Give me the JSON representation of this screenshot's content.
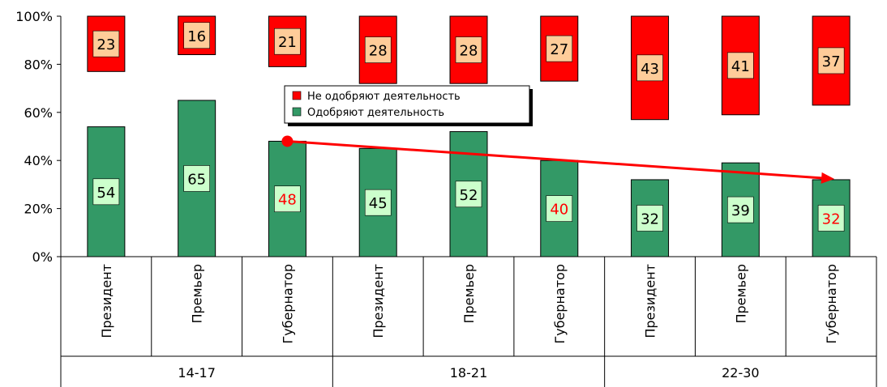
{
  "chart_data": {
    "type": "bar",
    "stacked": true,
    "y_tick_labels": [
      "0%",
      "20%",
      "40%",
      "60%",
      "80%",
      "100%"
    ],
    "ylim": [
      0,
      100
    ],
    "groups": [
      "14-17",
      "18-21",
      "22-30"
    ],
    "categories": [
      "Президент",
      "Премьер",
      "Губернатор",
      "Президент",
      "Премьер",
      "Губернатор",
      "Президент",
      "Премьер",
      "Губернатор"
    ],
    "series": [
      {
        "name": "Одобряют деятельность",
        "color": "#339966",
        "position": "bottom",
        "values": [
          54,
          65,
          48,
          45,
          52,
          40,
          32,
          39,
          32
        ]
      },
      {
        "name": "Не одобряют деятельность",
        "color": "#ff0000",
        "position": "top",
        "values": [
          23,
          16,
          21,
          28,
          28,
          27,
          43,
          41,
          37
        ]
      }
    ],
    "highlighted_labels": [
      2,
      5,
      8
    ],
    "highlight_color": "#ff0000",
    "green_label_fill": "#ccffcc",
    "red_label_fill": "#ffcc99",
    "legend_placement": "center-top",
    "grid": false,
    "trend_arrow": {
      "from_category": 2,
      "from_value": 48,
      "to_category": 8,
      "to_value": 32,
      "color": "#ff0000"
    }
  }
}
